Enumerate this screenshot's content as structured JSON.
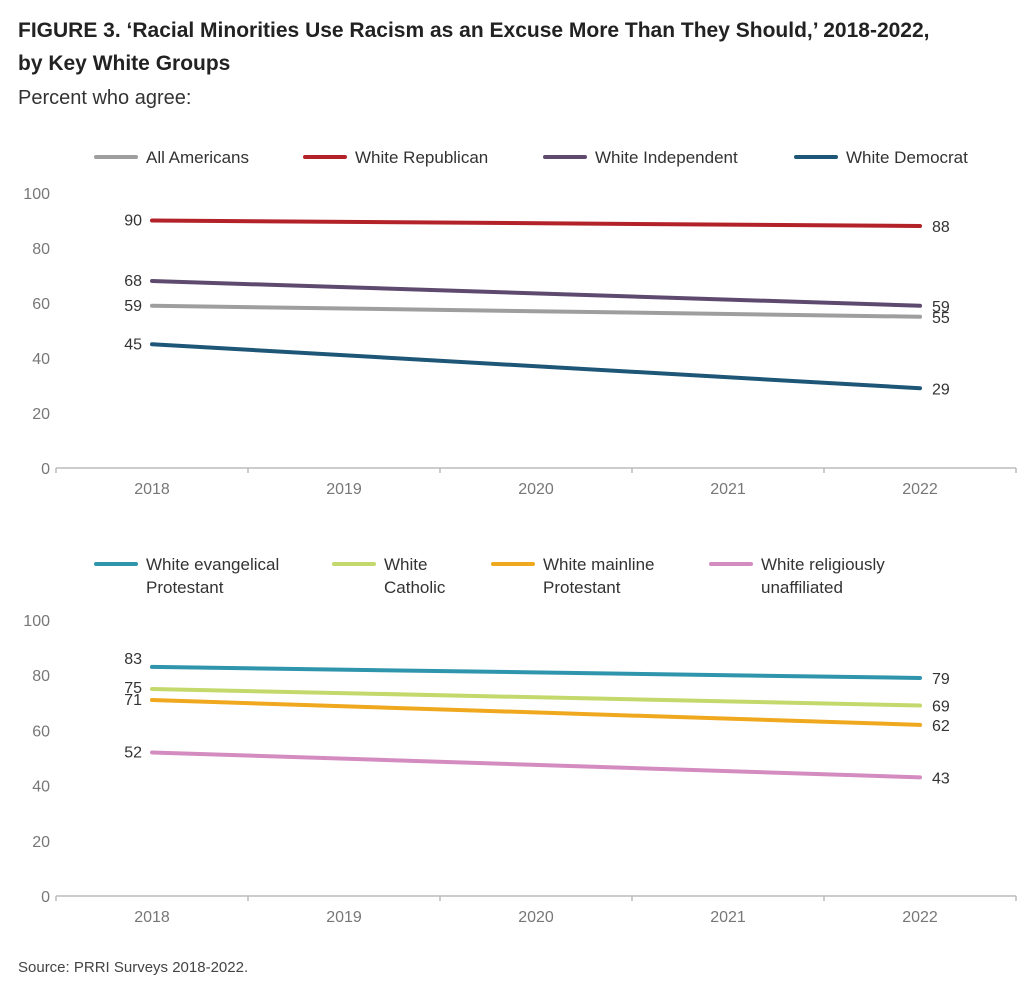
{
  "title_line1": "FIGURE 3.  ‘Racial Minorities Use Racism as an Excuse More Than They Should,’ 2018-2022,",
  "title_line2": "by Key White Groups",
  "subtitle": "Percent who agree:",
  "source": "Source: PRRI Surveys 2018-2022.",
  "colors": {
    "axis": "#bbbbbb",
    "tick_text": "#777777",
    "label_text": "#333333"
  },
  "chart_data": [
    {
      "type": "line",
      "x": [
        "2018",
        "2019",
        "2020",
        "2021",
        "2022"
      ],
      "ylim": [
        0,
        100
      ],
      "yticks": [
        0,
        20,
        40,
        60,
        80,
        100
      ],
      "legend_position": "top",
      "series": [
        {
          "name": "All Americans",
          "color": "#9e9e9e",
          "start": 59,
          "end": 55
        },
        {
          "name": "White Republican",
          "color": "#b22228",
          "start": 90,
          "end": 88
        },
        {
          "name": "White Independent",
          "color": "#5e4a6e",
          "start": 68,
          "end": 59
        },
        {
          "name": "White Democrat",
          "color": "#1e5678",
          "start": 45,
          "end": 29
        }
      ]
    },
    {
      "type": "line",
      "x": [
        "2018",
        "2019",
        "2020",
        "2021",
        "2022"
      ],
      "ylim": [
        0,
        100
      ],
      "yticks": [
        0,
        20,
        40,
        60,
        80,
        100
      ],
      "legend_position": "top",
      "series": [
        {
          "name": "White evangelical Protestant",
          "legend_lines": [
            "White evangelical",
            "Protestant"
          ],
          "color": "#2e95ad",
          "start": 83,
          "end": 79
        },
        {
          "name": "White Catholic",
          "legend_lines": [
            "White",
            "Catholic"
          ],
          "color": "#c3d96b",
          "start": 75,
          "end": 69
        },
        {
          "name": "White mainline Protestant",
          "legend_lines": [
            "White mainline",
            "Protestant"
          ],
          "color": "#f0a81e",
          "start": 71,
          "end": 62
        },
        {
          "name": "White religiously unaffiliated",
          "legend_lines": [
            "White religiously",
            "unaffiliated"
          ],
          "color": "#d48bc0",
          "start": 52,
          "end": 43
        }
      ]
    }
  ]
}
